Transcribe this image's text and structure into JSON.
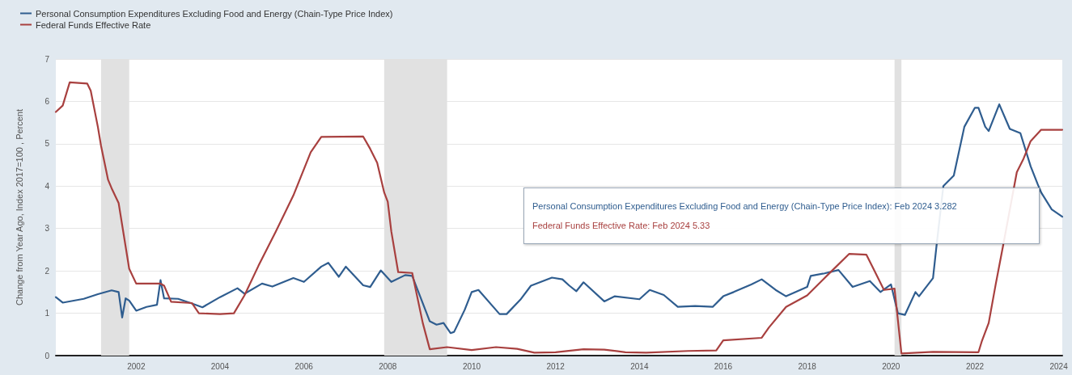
{
  "chart_data": {
    "type": "line",
    "ylabel": "Change from Year Ago, Index 2017=100 , Percent",
    "xlim": [
      "2000-02",
      "2024-02"
    ],
    "xticks": [
      "2002",
      "2004",
      "2006",
      "2008",
      "2010",
      "2012",
      "2014",
      "2016",
      "2018",
      "2020",
      "2022",
      "2024"
    ],
    "ylim": [
      0,
      7
    ],
    "yticks": [
      0,
      1,
      2,
      3,
      4,
      5,
      6,
      7
    ],
    "grid": "y",
    "legend": "top left",
    "marker": "none",
    "line_style": "solid",
    "bands": [
      {
        "axis": "x",
        "from": "2001-03",
        "to": "2001-11",
        "color": "#e1e1e1"
      },
      {
        "axis": "x",
        "from": "2007-12",
        "to": "2009-06",
        "color": "#e1e1e1"
      },
      {
        "axis": "x",
        "from": "2020-02",
        "to": "2020-04",
        "color": "#e1e1e1"
      }
    ],
    "annotations": [
      "Personal Consumption Expenditures Excluding Food and Energy (Chain-Type Price Index):  Feb 2024 3.282",
      "Federal Funds Effective Rate:  Feb 2024 5.33"
    ],
    "series": [
      {
        "name": "Personal Consumption Expenditures Excluding Food and Energy (Chain-Type Price Index)",
        "color": "#2f5d8f",
        "x": [
          "2000-02",
          "2000-04",
          "2000-10",
          "2001-02",
          "2001-06",
          "2001-08",
          "2001-09",
          "2001-10",
          "2001-11",
          "2002-01",
          "2002-04",
          "2002-07",
          "2002-08",
          "2002-09",
          "2003-01",
          "2003-05",
          "2003-08",
          "2004-01",
          "2004-06",
          "2004-08",
          "2005-01",
          "2005-04",
          "2005-10",
          "2006-01",
          "2006-06",
          "2006-08",
          "2006-11",
          "2007-01",
          "2007-06",
          "2007-08",
          "2007-11",
          "2008-02",
          "2008-06",
          "2008-08",
          "2009-01",
          "2009-03",
          "2009-05",
          "2009-07",
          "2009-08",
          "2009-11",
          "2010-01",
          "2010-03",
          "2010-09",
          "2010-11",
          "2011-03",
          "2011-06",
          "2011-12",
          "2012-03",
          "2012-05",
          "2012-07",
          "2012-09",
          "2013-03",
          "2013-06",
          "2014-01",
          "2014-04",
          "2014-08",
          "2014-12",
          "2015-05",
          "2015-10",
          "2016-01",
          "2016-04",
          "2016-09",
          "2016-12",
          "2017-04",
          "2017-07",
          "2018-01",
          "2018-02",
          "2018-06",
          "2018-10",
          "2019-02",
          "2019-07",
          "2019-10",
          "2020-01",
          "2020-03",
          "2020-05",
          "2020-08",
          "2020-09",
          "2021-01",
          "2021-02",
          "2021-04",
          "2021-07",
          "2021-10",
          "2022-01",
          "2022-02",
          "2022-04",
          "2022-05",
          "2022-08",
          "2022-11",
          "2023-02",
          "2023-05",
          "2023-07",
          "2023-08",
          "2023-11",
          "2024-02"
        ],
        "values": [
          1.38,
          1.25,
          1.34,
          1.45,
          1.54,
          1.5,
          0.9,
          1.35,
          1.3,
          1.06,
          1.15,
          1.2,
          1.78,
          1.35,
          1.34,
          1.23,
          1.14,
          1.38,
          1.59,
          1.46,
          1.7,
          1.63,
          1.83,
          1.74,
          2.1,
          2.19,
          1.86,
          2.1,
          1.66,
          1.62,
          2.01,
          1.74,
          1.9,
          1.88,
          0.81,
          0.73,
          0.77,
          0.53,
          0.56,
          1.08,
          1.5,
          1.55,
          0.98,
          0.98,
          1.32,
          1.65,
          1.84,
          1.8,
          1.65,
          1.52,
          1.73,
          1.28,
          1.4,
          1.33,
          1.55,
          1.43,
          1.15,
          1.17,
          1.15,
          1.4,
          1.5,
          1.68,
          1.8,
          1.55,
          1.4,
          1.62,
          1.88,
          1.94,
          2.02,
          1.62,
          1.76,
          1.5,
          1.68,
          1.0,
          0.96,
          1.5,
          1.4,
          1.83,
          2.6,
          4.0,
          4.25,
          5.4,
          5.85,
          5.85,
          5.4,
          5.3,
          5.93,
          5.35,
          5.25,
          4.47,
          4.05,
          3.85,
          3.45,
          3.28
        ]
      },
      {
        "name": "Federal Funds Effective Rate",
        "color": "#a8403f",
        "x": [
          "2000-02",
          "2000-04",
          "2000-06",
          "2000-11",
          "2000-12",
          "2001-02",
          "2001-03",
          "2001-05",
          "2001-06",
          "2001-08",
          "2001-11",
          "2002-01",
          "2002-08",
          "2002-09",
          "2002-11",
          "2003-05",
          "2003-07",
          "2004-01",
          "2004-05",
          "2004-08",
          "2004-12",
          "2005-05",
          "2005-10",
          "2006-03",
          "2006-06",
          "2007-06",
          "2007-08",
          "2007-10",
          "2007-12",
          "2008-01",
          "2008-02",
          "2008-04",
          "2008-08",
          "2008-11",
          "2009-01",
          "2009-06",
          "2010-01",
          "2010-08",
          "2011-02",
          "2011-07",
          "2012-01",
          "2012-09",
          "2013-03",
          "2013-09",
          "2014-03",
          "2015-03",
          "2015-11",
          "2016-01",
          "2016-12",
          "2017-02",
          "2017-07",
          "2018-01",
          "2018-07",
          "2019-01",
          "2019-06",
          "2019-08",
          "2019-11",
          "2020-02",
          "2020-04",
          "2021-01",
          "2022-02",
          "2022-03",
          "2022-05",
          "2022-07",
          "2022-09",
          "2023-01",
          "2023-03",
          "2023-05",
          "2023-08",
          "2024-02"
        ],
        "values": [
          5.75,
          5.9,
          6.45,
          6.42,
          6.25,
          5.4,
          4.95,
          4.15,
          3.95,
          3.6,
          2.05,
          1.7,
          1.7,
          1.65,
          1.27,
          1.24,
          1.0,
          0.98,
          1.0,
          1.42,
          2.12,
          2.93,
          3.78,
          4.8,
          5.16,
          5.17,
          4.88,
          4.55,
          3.85,
          3.63,
          2.93,
          1.97,
          1.95,
          0.77,
          0.15,
          0.2,
          0.13,
          0.2,
          0.16,
          0.07,
          0.08,
          0.15,
          0.14,
          0.08,
          0.07,
          0.11,
          0.12,
          0.36,
          0.42,
          0.66,
          1.15,
          1.42,
          1.91,
          2.4,
          2.38,
          2.05,
          1.55,
          1.58,
          0.05,
          0.09,
          0.08,
          0.33,
          0.77,
          1.68,
          2.56,
          4.33,
          4.65,
          5.06,
          5.33,
          5.33
        ]
      }
    ]
  }
}
